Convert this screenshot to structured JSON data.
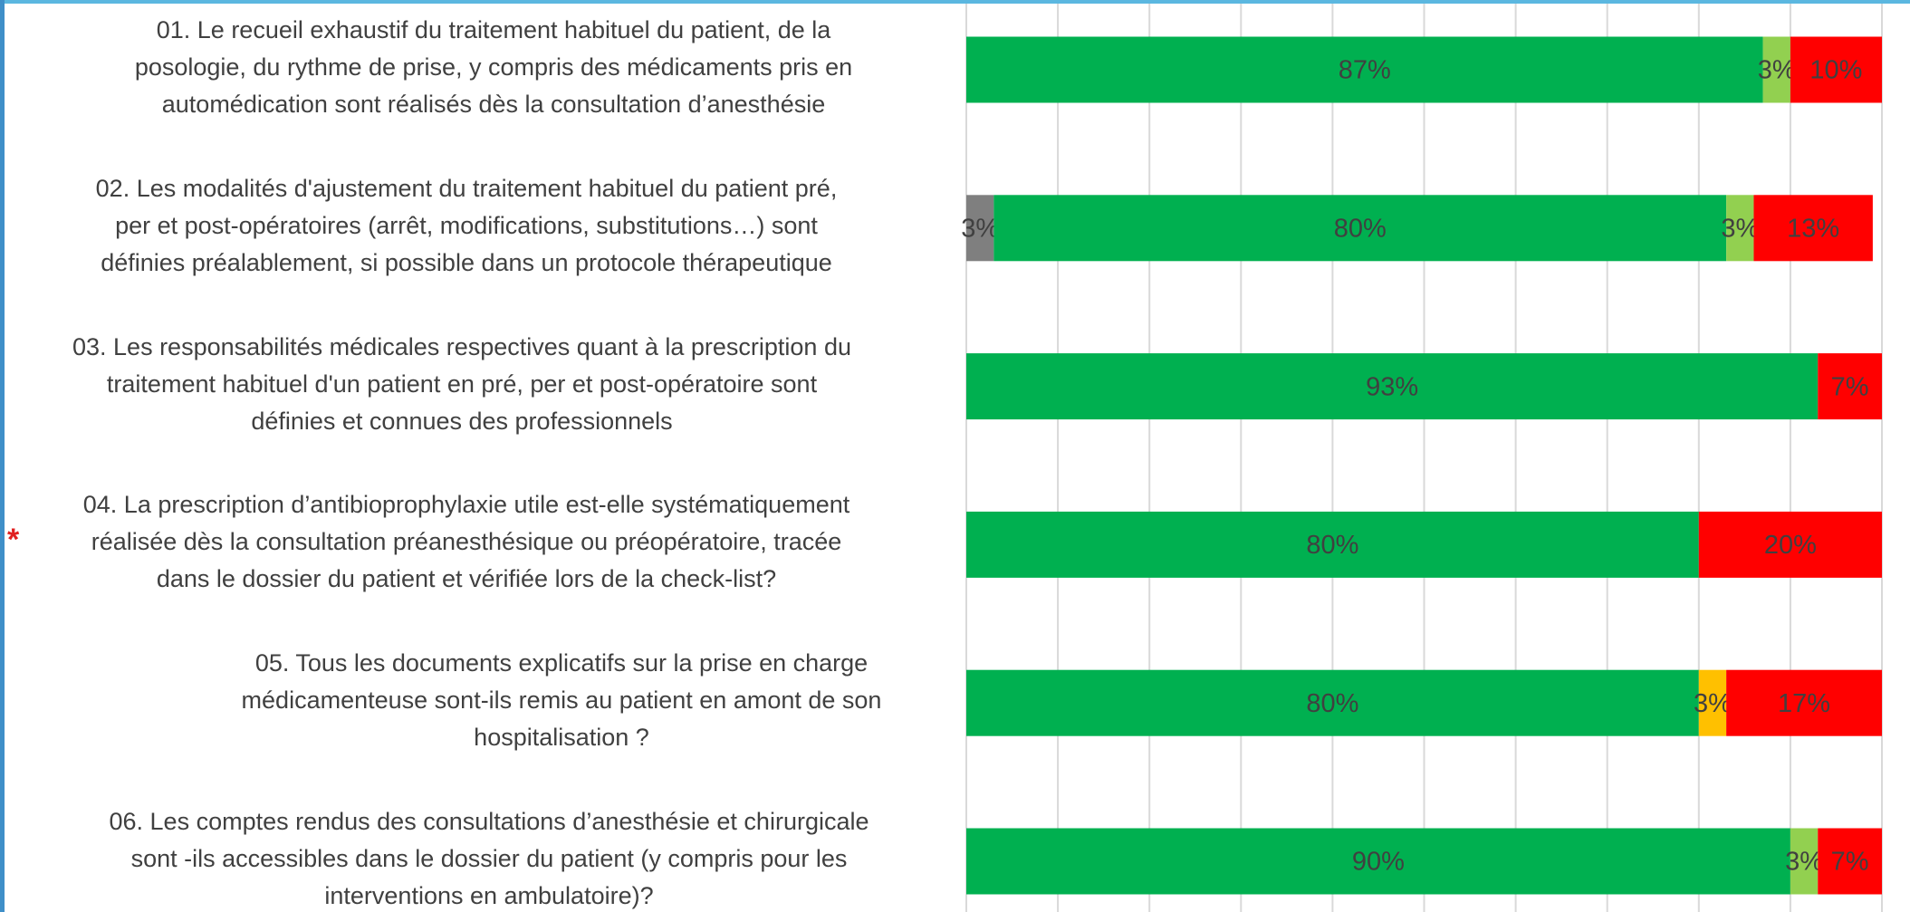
{
  "chart_data": {
    "type": "stacked-barh",
    "categories": [
      "01. Le recueil exhaustif du traitement habituel du patient, de la\nposologie, du rythme de prise, y compris des médicaments pris en\nautomédication sont réalisés dès la consultation d’anesthésie",
      "02. Les modalités d'ajustement du traitement habituel du patient pré,\nper et post-opératoires (arrêt, modifications, substitutions…) sont\ndéfinies préalablement, si possible dans un protocole thérapeutique",
      "03. Les responsabilités médicales respectives quant à la prescription du\ntraitement habituel d'un patient en pré, per et post-opératoire sont\ndéfinies et connues des professionnels",
      "04. La prescription d’antibioprophylaxie utile est-elle systématiquement\nréalisée dès la consultation préanesthésique ou préopératoire, tracée\ndans le dossier du patient et vérifiée lors de la check-list?",
      "05. Tous les documents explicatifs sur la prise en charge\nmédicamenteuse sont-ils remis au patient en amont de son\nhospitalisation ?",
      "06. Les comptes rendus des consultations d’anesthésie et chirurgicale\nsont -ils accessibles dans le dossier du patient (y compris pour les\ninterventions en ambulatoire)?"
    ],
    "annotations": [
      {
        "category": 3,
        "text": "*",
        "color": "#e02020"
      }
    ],
    "series": [
      {
        "color": "#7f7f7f",
        "values": [
          null,
          3,
          null,
          null,
          null,
          null
        ],
        "value_labels": [
          null,
          "3%",
          null,
          null,
          null,
          null
        ]
      },
      {
        "color": "#00b050",
        "values": [
          87,
          80,
          93,
          80,
          80,
          90
        ],
        "value_labels": [
          "87%",
          "80%",
          "93%",
          "80%",
          "80%",
          "90%"
        ]
      },
      {
        "color": "#92d050",
        "values": [
          3,
          3,
          null,
          null,
          null,
          3
        ],
        "value_labels": [
          "3%",
          "3%",
          null,
          null,
          null,
          "3%"
        ]
      },
      {
        "color": "#ffc000",
        "values": [
          null,
          null,
          null,
          null,
          3,
          null
        ],
        "value_labels": [
          null,
          null,
          null,
          null,
          "3%",
          null
        ]
      },
      {
        "color": "#ff0000",
        "values": [
          10,
          13,
          7,
          20,
          17,
          7
        ],
        "value_labels": [
          "10%",
          "13%",
          "7%",
          "20%",
          "17%",
          "7%"
        ]
      }
    ],
    "xlim": [
      0,
      100
    ],
    "xticks": [
      0,
      10,
      20,
      30,
      40,
      50,
      60,
      70,
      80,
      90,
      100
    ],
    "grid": true
  }
}
